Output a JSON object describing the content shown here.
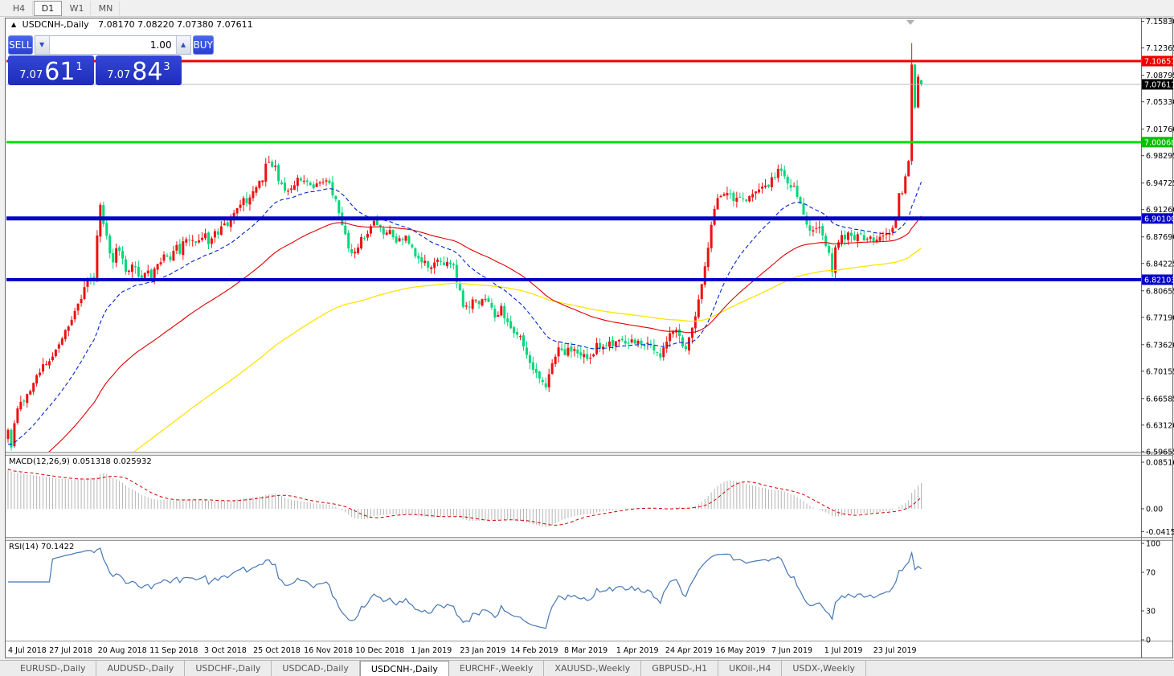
{
  "window": {
    "timeframes": [
      {
        "label": "H4"
      },
      {
        "label": "D1"
      },
      {
        "label": "W1"
      },
      {
        "label": "MN"
      }
    ],
    "active_timeframe": "D1"
  },
  "chart": {
    "title_icon": "▲",
    "title_symbol": "USDCNH-,Daily",
    "title_ohlc": "7.08170 7.08220 7.07380 7.07611",
    "shift_marker_icon": "▼"
  },
  "trade_panel": {
    "sell_label": "SELL",
    "buy_label": "BUY",
    "volume": "1.00",
    "icons": {
      "volume_down": "▼",
      "volume_up": "▲"
    },
    "sell_price": {
      "prefix": "7.07",
      "big": "61",
      "sup": "1"
    },
    "buy_price": {
      "prefix": "7.07",
      "big": "84",
      "sup": "3"
    }
  },
  "price_axis": {
    "ticks": [
      "7.15830",
      "7.12365",
      "7.08795",
      "7.05330",
      "7.01760",
      "6.98295",
      "6.94725",
      "6.91260",
      "6.87690",
      "6.84225",
      "6.80655",
      "6.77190",
      "6.73620",
      "6.70155",
      "6.66585",
      "6.63120",
      "6.59655"
    ],
    "badges": [
      {
        "text": "7.10651",
        "color": "#ee0000"
      },
      {
        "text": "7.07611",
        "color": "#000000"
      },
      {
        "text": "7.00068",
        "color": "#00c000"
      },
      {
        "text": "6.90100",
        "color": "#0000c8"
      },
      {
        "text": "6.82103",
        "color": "#0000c8"
      }
    ]
  },
  "indicators": {
    "macd": {
      "label": "MACD(12,26,9) 0.051318 0.025932",
      "main": "0.051318",
      "signal": "0.025932",
      "axis": [
        "0.085164",
        "0.00",
        "-0.041598"
      ]
    },
    "rsi": {
      "label": "RSI(14) 70.1422",
      "value": "70.1422",
      "axis": [
        "100",
        "70",
        "30",
        "0"
      ]
    }
  },
  "x_axis": {
    "labels": [
      "4 Jul 2018",
      "27 Jul 2018",
      "20 Aug 2018",
      "11 Sep 2018",
      "3 Oct 2018",
      "25 Oct 2018",
      "16 Nov 2018",
      "10 Dec 2018",
      "1 Jan 2019",
      "23 Jan 2019",
      "14 Feb 2019",
      "8 Mar 2019",
      "1 Apr 2019",
      "24 Apr 2019",
      "16 May 2019",
      "7 Jun 2019",
      "1 Jul 2019",
      "23 Jul 2019"
    ]
  },
  "tabs": {
    "items": [
      {
        "label": "EURUSD-,Daily"
      },
      {
        "label": "AUDUSD-,Daily"
      },
      {
        "label": "USDCHF-,Daily"
      },
      {
        "label": "USDCAD-,Daily"
      },
      {
        "label": "USDCNH-,Daily"
      },
      {
        "label": "EURCHF-,Weekly"
      },
      {
        "label": "XAUUSD-,Weekly"
      },
      {
        "label": "GBPUSD-,H1"
      },
      {
        "label": "UKOil-,H4"
      },
      {
        "label": "USDX-,Weekly"
      }
    ],
    "active": "USDCNH-,Daily"
  },
  "chart_data": {
    "type": "candlestick",
    "symbol": "USDCNH",
    "timeframe": "Daily",
    "colors": {
      "candle_up": "#ee1111",
      "candle_down": "#00d878",
      "ma_fast": "#0026cc",
      "ma_mid": "#e00000",
      "ma_slow": "#ffe400",
      "macd_hist": "#b4b4b4",
      "macd_signal": "#d00000",
      "rsi_line": "#4577b5",
      "bid_line": "#b8b8b8"
    },
    "hlines": [
      {
        "price": 7.10651,
        "color": "#ee0000",
        "width": 3
      },
      {
        "price": 7.00068,
        "color": "#00dd00",
        "width": 3
      },
      {
        "price": 6.901,
        "color": "#0000c8",
        "width": 5
      },
      {
        "price": 6.82103,
        "color": "#0000c8",
        "width": 4
      }
    ],
    "bid_price": 7.07611,
    "last_candle": {
      "open": 7.0817,
      "high": 7.0822,
      "low": 7.0738,
      "close": 7.07611
    },
    "price_anchors": [
      [
        10,
        6.625
      ],
      [
        14,
        6.605
      ],
      [
        20,
        6.648
      ],
      [
        28,
        6.662
      ],
      [
        36,
        6.676
      ],
      [
        44,
        6.692
      ],
      [
        52,
        6.707
      ],
      [
        60,
        6.717
      ],
      [
        68,
        6.727
      ],
      [
        76,
        6.744
      ],
      [
        84,
        6.758
      ],
      [
        92,
        6.773
      ],
      [
        100,
        6.795
      ],
      [
        108,
        6.822
      ],
      [
        112,
        6.83
      ],
      [
        116,
        6.812
      ],
      [
        120,
        6.862
      ],
      [
        124,
        6.928
      ],
      [
        128,
        6.895
      ],
      [
        134,
        6.872
      ],
      [
        140,
        6.836
      ],
      [
        146,
        6.867
      ],
      [
        152,
        6.85
      ],
      [
        158,
        6.825
      ],
      [
        164,
        6.842
      ],
      [
        170,
        6.838
      ],
      [
        176,
        6.815
      ],
      [
        182,
        6.835
      ],
      [
        188,
        6.824
      ],
      [
        194,
        6.835
      ],
      [
        200,
        6.846
      ],
      [
        206,
        6.852
      ],
      [
        212,
        6.848
      ],
      [
        218,
        6.868
      ],
      [
        224,
        6.858
      ],
      [
        230,
        6.882
      ],
      [
        236,
        6.868
      ],
      [
        242,
        6.873
      ],
      [
        248,
        6.868
      ],
      [
        254,
        6.88
      ],
      [
        260,
        6.87
      ],
      [
        266,
        6.885
      ],
      [
        272,
        6.883
      ],
      [
        278,
        6.897
      ],
      [
        284,
        6.892
      ],
      [
        290,
        6.908
      ],
      [
        296,
        6.912
      ],
      [
        302,
        6.928
      ],
      [
        308,
        6.924
      ],
      [
        314,
        6.938
      ],
      [
        320,
        6.944
      ],
      [
        326,
        6.95
      ],
      [
        332,
        6.973
      ],
      [
        338,
        6.968
      ],
      [
        342,
        6.978
      ],
      [
        348,
        6.944
      ],
      [
        354,
        6.938
      ],
      [
        360,
        6.94
      ],
      [
        366,
        6.948
      ],
      [
        372,
        6.952
      ],
      [
        378,
        6.954
      ],
      [
        384,
        6.948
      ],
      [
        390,
        6.944
      ],
      [
        396,
        6.947
      ],
      [
        402,
        6.952
      ],
      [
        408,
        6.95
      ],
      [
        414,
        6.935
      ],
      [
        420,
        6.918
      ],
      [
        426,
        6.896
      ],
      [
        432,
        6.87
      ],
      [
        438,
        6.852
      ],
      [
        444,
        6.86
      ],
      [
        450,
        6.88
      ],
      [
        456,
        6.877
      ],
      [
        462,
        6.89
      ],
      [
        468,
        6.898
      ],
      [
        474,
        6.888
      ],
      [
        480,
        6.878
      ],
      [
        486,
        6.883
      ],
      [
        492,
        6.873
      ],
      [
        498,
        6.877
      ],
      [
        504,
        6.877
      ],
      [
        510,
        6.865
      ],
      [
        516,
        6.856
      ],
      [
        522,
        6.848
      ],
      [
        528,
        6.843
      ],
      [
        534,
        6.83
      ],
      [
        540,
        6.842
      ],
      [
        546,
        6.848
      ],
      [
        552,
        6.836
      ],
      [
        558,
        6.845
      ],
      [
        564,
        6.84
      ],
      [
        570,
        6.812
      ],
      [
        576,
        6.79
      ],
      [
        582,
        6.78
      ],
      [
        588,
        6.798
      ],
      [
        594,
        6.792
      ],
      [
        600,
        6.796
      ],
      [
        606,
        6.8
      ],
      [
        612,
        6.78
      ],
      [
        618,
        6.772
      ],
      [
        624,
        6.783
      ],
      [
        630,
        6.77
      ],
      [
        636,
        6.76
      ],
      [
        642,
        6.75
      ],
      [
        648,
        6.744
      ],
      [
        654,
        6.727
      ],
      [
        660,
        6.714
      ],
      [
        666,
        6.698
      ],
      [
        672,
        6.687
      ],
      [
        678,
        6.68
      ],
      [
        684,
        6.703
      ],
      [
        690,
        6.722
      ],
      [
        696,
        6.735
      ],
      [
        702,
        6.724
      ],
      [
        708,
        6.73
      ],
      [
        714,
        6.732
      ],
      [
        720,
        6.724
      ],
      [
        726,
        6.728
      ],
      [
        732,
        6.714
      ],
      [
        738,
        6.726
      ],
      [
        744,
        6.737
      ],
      [
        750,
        6.734
      ],
      [
        756,
        6.739
      ],
      [
        762,
        6.738
      ],
      [
        768,
        6.744
      ],
      [
        774,
        6.742
      ],
      [
        780,
        6.737
      ],
      [
        786,
        6.74
      ],
      [
        792,
        6.74
      ],
      [
        798,
        6.732
      ],
      [
        804,
        6.738
      ],
      [
        810,
        6.737
      ],
      [
        816,
        6.724
      ],
      [
        822,
        6.722
      ],
      [
        828,
        6.736
      ],
      [
        834,
        6.748
      ],
      [
        840,
        6.758
      ],
      [
        846,
        6.744
      ],
      [
        852,
        6.73
      ],
      [
        858,
        6.748
      ],
      [
        864,
        6.77
      ],
      [
        870,
        6.798
      ],
      [
        876,
        6.832
      ],
      [
        882,
        6.872
      ],
      [
        888,
        6.906
      ],
      [
        894,
        6.93
      ],
      [
        900,
        6.928
      ],
      [
        906,
        6.934
      ],
      [
        912,
        6.924
      ],
      [
        918,
        6.934
      ],
      [
        924,
        6.93
      ],
      [
        930,
        6.924
      ],
      [
        936,
        6.933
      ],
      [
        942,
        6.932
      ],
      [
        948,
        6.944
      ],
      [
        954,
        6.94
      ],
      [
        960,
        6.95
      ],
      [
        966,
        6.96
      ],
      [
        970,
        6.971
      ],
      [
        976,
        6.954
      ],
      [
        982,
        6.946
      ],
      [
        988,
        6.942
      ],
      [
        994,
        6.928
      ],
      [
        1000,
        6.906
      ],
      [
        1006,
        6.882
      ],
      [
        1012,
        6.886
      ],
      [
        1018,
        6.892
      ],
      [
        1024,
        6.878
      ],
      [
        1030,
        6.862
      ],
      [
        1036,
        6.832
      ],
      [
        1040,
        6.866
      ],
      [
        1046,
        6.88
      ],
      [
        1052,
        6.877
      ],
      [
        1058,
        6.884
      ],
      [
        1064,
        6.874
      ],
      [
        1070,
        6.878
      ],
      [
        1076,
        6.874
      ],
      [
        1082,
        6.878
      ],
      [
        1088,
        6.873
      ],
      [
        1094,
        6.877
      ],
      [
        1100,
        6.878
      ],
      [
        1106,
        6.88
      ],
      [
        1112,
        6.886
      ],
      [
        1116,
        6.9
      ],
      [
        1121,
        6.934
      ],
      [
        1125,
        6.956
      ],
      [
        1129,
        6.976
      ],
      [
        1133,
        7.102
      ],
      [
        1137,
        7.046
      ],
      [
        1141,
        7.086
      ],
      [
        1145,
        7.068
      ],
      [
        1149,
        7.0761
      ]
    ],
    "ylim": [
      6.575,
      7.16
    ],
    "macd_settings": "12,26,9",
    "rsi_settings": "14"
  }
}
